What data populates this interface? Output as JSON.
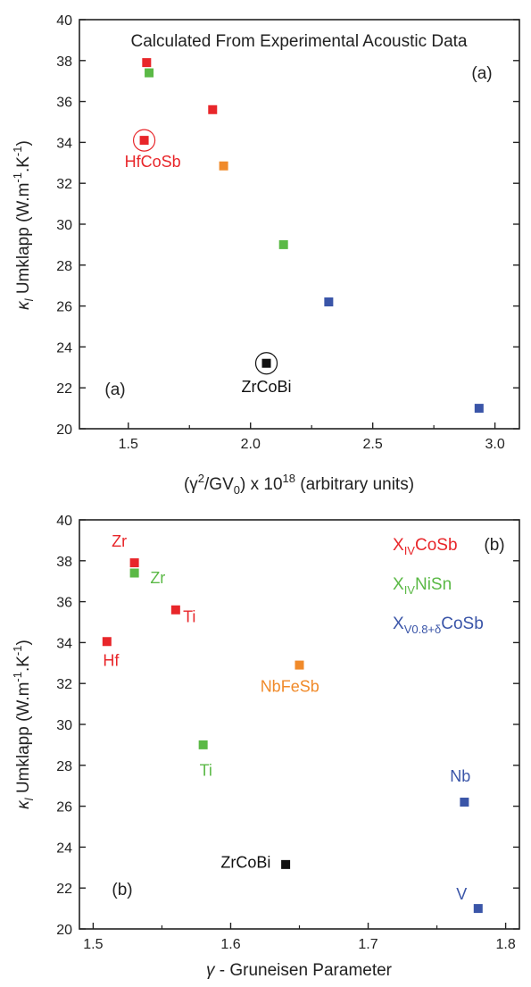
{
  "chart_data": [
    {
      "panel": "(a)",
      "type": "scatter",
      "title": "Calculated From Experimental Acoustic Data",
      "xlabel_pre": "(γ",
      "xlabel_sup": "2",
      "xlabel_mid": "/GV",
      "xlabel_sub": "0",
      "xlabel_post": ") x 10",
      "xlabel_exp": "18",
      "xlabel_end": " (arbitrary units)",
      "ylabel_kappa": "κ",
      "ylabel_l": "l",
      "ylabel_main": " Umklapp (W.m",
      "ylabel_e1": "-1",
      "ylabel_k": ".K",
      "ylabel_e2": "-1",
      "ylabel_end": ")",
      "xlim": [
        1.3,
        3.1
      ],
      "ylim": [
        20,
        40
      ],
      "xticks": [
        "1.5",
        "2.0",
        "2.5",
        "3.0"
      ],
      "yticks": [
        "20",
        "22",
        "24",
        "26",
        "28",
        "30",
        "32",
        "34",
        "36",
        "38",
        "40"
      ],
      "corner_label": "(a)",
      "inner_label": "(a)",
      "points": [
        {
          "x": 1.575,
          "y": 37.9,
          "color": "#e8262a"
        },
        {
          "x": 1.585,
          "y": 37.4,
          "color": "#5bb946"
        },
        {
          "x": 1.845,
          "y": 35.6,
          "color": "#e8262a"
        },
        {
          "x": 1.565,
          "y": 34.1,
          "color": "#e8262a",
          "circled": true
        },
        {
          "x": 1.89,
          "y": 32.85,
          "color": "#f08a2a"
        },
        {
          "x": 2.135,
          "y": 29.0,
          "color": "#5bb946"
        },
        {
          "x": 2.32,
          "y": 26.2,
          "color": "#3a55a8"
        },
        {
          "x": 2.065,
          "y": 23.2,
          "color": "#111111",
          "circled": true
        },
        {
          "x": 2.935,
          "y": 21.0,
          "color": "#3a55a8"
        }
      ],
      "annotations": [
        {
          "text": "HfCoSb",
          "x": 1.6,
          "y": 32.8,
          "color": "#e8262a"
        },
        {
          "text": "ZrCoBi",
          "x": 2.065,
          "y": 21.8,
          "color": "#111111"
        }
      ]
    },
    {
      "panel": "(b)",
      "type": "scatter",
      "xlabel_gamma": "γ",
      "xlabel_rest": " - Gruneisen Parameter",
      "ylabel_kappa": "κ",
      "ylabel_l": "l",
      "ylabel_main": " Umklapp (W.m",
      "ylabel_e1": "-1",
      "ylabel_k": ".K",
      "ylabel_e2": "-1",
      "ylabel_end": ")",
      "xlim": [
        1.49,
        1.81
      ],
      "ylim": [
        20,
        40
      ],
      "xticks": [
        "1.5",
        "1.6",
        "1.7",
        "1.8"
      ],
      "yticks": [
        "20",
        "22",
        "24",
        "26",
        "28",
        "30",
        "32",
        "34",
        "36",
        "38",
        "40"
      ],
      "corner_label": "(b)",
      "inner_label": "(b)",
      "points": [
        {
          "x": 1.53,
          "y": 37.9,
          "color": "#e8262a"
        },
        {
          "x": 1.53,
          "y": 37.4,
          "color": "#5bb946"
        },
        {
          "x": 1.56,
          "y": 35.6,
          "color": "#e8262a"
        },
        {
          "x": 1.51,
          "y": 34.05,
          "color": "#e8262a"
        },
        {
          "x": 1.65,
          "y": 32.9,
          "color": "#f08a2a"
        },
        {
          "x": 1.58,
          "y": 29.0,
          "color": "#5bb946"
        },
        {
          "x": 1.77,
          "y": 26.2,
          "color": "#3a55a8"
        },
        {
          "x": 1.64,
          "y": 23.15,
          "color": "#111111"
        },
        {
          "x": 1.78,
          "y": 21.0,
          "color": "#3a55a8"
        }
      ],
      "annotations": [
        {
          "text": "Zr",
          "x": 1.519,
          "y": 38.7,
          "color": "#e8262a"
        },
        {
          "text": "Zr",
          "x": 1.547,
          "y": 36.9,
          "color": "#5bb946"
        },
        {
          "text": "Ti",
          "x": 1.57,
          "y": 35.0,
          "color": "#e8262a"
        },
        {
          "text": "Hf",
          "x": 1.513,
          "y": 32.85,
          "color": "#e8262a"
        },
        {
          "text": "NbFeSb",
          "x": 1.643,
          "y": 31.6,
          "color": "#f08a2a"
        },
        {
          "text": "Ti",
          "x": 1.582,
          "y": 27.5,
          "color": "#5bb946"
        },
        {
          "text": "Nb",
          "x": 1.767,
          "y": 27.2,
          "color": "#3a55a8"
        },
        {
          "text": "ZrCoBi",
          "x": 1.611,
          "y": 23.0,
          "color": "#111111"
        },
        {
          "text": "V",
          "x": 1.768,
          "y": 21.45,
          "color": "#3a55a8"
        }
      ],
      "legend": [
        {
          "main": "X",
          "sub": "IV",
          "rest": "CoSb",
          "color": "#e8262a"
        },
        {
          "main": "X",
          "sub": "IV",
          "rest": "NiSn",
          "color": "#5bb946"
        },
        {
          "main": "X",
          "sub": "V0.8+δ",
          "rest": "CoSb",
          "color": "#3a55a8"
        }
      ]
    }
  ]
}
